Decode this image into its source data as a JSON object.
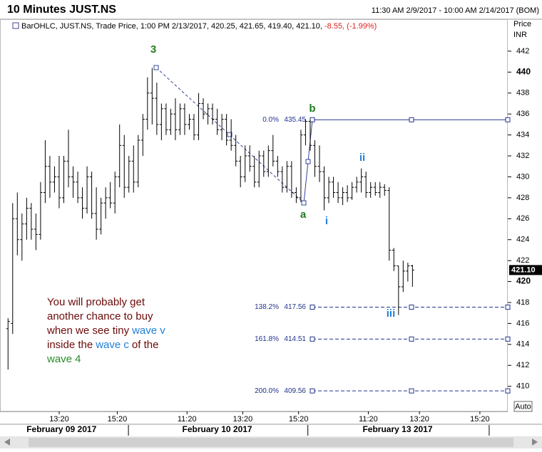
{
  "chart_data": {
    "type": "ohlc",
    "title": "10 Minutes JUST.NS",
    "range_label": "11:30 AM 2/9/2017 - 10:00 AM 2/14/2017 (BOM)",
    "info": "BarOHLC, JUST.NS, Trade Price, 1:00 PM 2/13/2017, 420.25, 421.65, 419.40, 421.10,",
    "info_change": "-8.55, (-1.99%)",
    "y_axis_label": "Price",
    "y_axis_unit": "INR",
    "auto_label": "Auto",
    "color": "#000000",
    "ohlc": {
      "open": [
        415.5,
        416,
        426,
        424,
        425.5,
        427,
        425,
        424.5,
        428.5,
        431,
        429.5,
        430,
        428,
        431.5,
        430,
        429.5,
        428,
        427,
        430,
        426.5,
        425,
        427.5,
        428,
        427.5,
        430,
        433,
        429,
        431.5,
        429.5,
        433.5,
        435.5,
        438,
        437.5,
        435,
        436.5,
        434.5,
        436,
        434.5,
        436.5,
        435,
        435.5,
        434,
        437,
        436,
        436.5,
        435.5,
        434.5,
        435.5,
        433.5,
        433,
        431.5,
        430,
        432,
        431,
        429.5,
        432,
        430.5,
        432.5,
        431.5,
        430.5,
        429,
        431,
        428.5,
        428,
        434,
        435.3,
        433,
        431,
        430.5,
        428,
        429.5,
        428.5,
        428,
        428.5,
        428,
        429,
        429.5,
        430,
        428.5,
        429,
        428.5,
        429,
        428.7,
        423,
        421.5,
        419.5,
        421,
        421.5
      ],
      "high": [
        416.5,
        427.5,
        428.5,
        426.5,
        428,
        427.5,
        426.5,
        429.5,
        433.5,
        432,
        431,
        432,
        432,
        434.5,
        431,
        430.5,
        429,
        431,
        430.5,
        429,
        428,
        429,
        429.5,
        430.5,
        435,
        434,
        432,
        433,
        434,
        436,
        439.5,
        440.4,
        439,
        437,
        437,
        436.5,
        437.5,
        437,
        437,
        436,
        436,
        438,
        437.5,
        437,
        437,
        436.5,
        436,
        436,
        435.5,
        434,
        432,
        433,
        433,
        432,
        432.5,
        432.5,
        433,
        434,
        432,
        431,
        431.5,
        431.5,
        429,
        434.5,
        435.5,
        435.45,
        433.5,
        433,
        431,
        430,
        430,
        429.5,
        429,
        429.2,
        429.5,
        430,
        430.8,
        430.5,
        429.5,
        429.5,
        429.5,
        429.3,
        429,
        423.2,
        421.5,
        422,
        421.8,
        421.6
      ],
      "low": [
        411.6,
        415,
        422.5,
        422,
        424,
        424,
        423,
        424,
        427.5,
        428,
        428.5,
        427,
        427.5,
        429,
        428,
        427.5,
        426,
        426.5,
        426,
        424,
        424.5,
        426,
        427,
        426.5,
        429,
        428,
        428.5,
        428.5,
        429,
        432,
        434.5,
        435,
        434,
        433.5,
        434,
        434,
        433.5,
        434,
        434,
        434.5,
        433.5,
        433.5,
        435.5,
        435,
        435,
        434,
        433.5,
        433,
        432.5,
        431,
        429,
        429.5,
        430.5,
        429,
        429,
        430,
        430,
        431,
        430,
        428.5,
        428.5,
        428,
        427.5,
        427.6,
        433,
        432.5,
        430,
        429.5,
        426.8,
        427.5,
        428,
        427.5,
        427.3,
        427.6,
        427.8,
        428.5,
        428.5,
        428,
        428,
        428.2,
        428,
        428.2,
        422,
        421,
        416.8,
        419,
        420,
        419.5
      ],
      "close": [
        416.2,
        426,
        424,
        425.5,
        427,
        425,
        424.5,
        428.5,
        431,
        429.5,
        430,
        428,
        431.5,
        430,
        429.5,
        428,
        427,
        430,
        426.5,
        425,
        427.5,
        428,
        427.5,
        430,
        433,
        429,
        431.5,
        429.5,
        433.5,
        435.5,
        438,
        437.5,
        435,
        436.5,
        434.5,
        436,
        434.5,
        436.5,
        435,
        435.5,
        434,
        437,
        436,
        436.5,
        435.5,
        434.5,
        435.5,
        433.5,
        433,
        431.5,
        430,
        432,
        431,
        429.5,
        432,
        430.5,
        432.5,
        431.5,
        430.5,
        429,
        431,
        428.5,
        428,
        434,
        435.3,
        433,
        431,
        430.5,
        428,
        429.5,
        428.5,
        428,
        428.5,
        428,
        429,
        429.5,
        430,
        428.5,
        429,
        428.5,
        429,
        428.7,
        423,
        421.5,
        419.5,
        421,
        421.5,
        421.1
      ]
    },
    "xlim": [
      -0.5,
      107.5
    ],
    "ylim": [
      407.6,
      445.05
    ],
    "yticks": [
      410,
      412,
      414,
      416,
      418,
      420,
      422,
      424,
      426,
      428,
      430,
      432,
      434,
      436,
      438,
      440,
      442
    ],
    "xticks": [
      {
        "value": 11,
        "label": "13:20"
      },
      {
        "value": 23.5,
        "label": "15:20"
      },
      {
        "value": 38.5,
        "label": "11:20"
      },
      {
        "value": 50.5,
        "label": "13:20"
      },
      {
        "value": 62.5,
        "label": "15:20"
      },
      {
        "value": 77.5,
        "label": "11:20"
      },
      {
        "value": 88.5,
        "label": "13:20"
      },
      {
        "value": 101.5,
        "label": "15:20"
      }
    ],
    "day_ticks": [
      {
        "value": 11.5,
        "label": "February 09 2017"
      },
      {
        "value": 45,
        "label": "February 10 2017"
      },
      {
        "value": 83.8,
        "label": "February 13 2017"
      }
    ],
    "day_separators": [
      25.9,
      64.5,
      103.5
    ],
    "last_price": {
      "value": 421.1,
      "label": "421.10"
    },
    "fib_levels": [
      {
        "ratio": "0.0%",
        "price": 435.45,
        "line_style": "solid"
      },
      {
        "ratio": "138.2%",
        "price": 417.56,
        "line_style": "dashed"
      },
      {
        "ratio": "161.8%",
        "price": 414.51,
        "line_style": "dashed"
      },
      {
        "ratio": "200.0%",
        "price": 409.56,
        "line_style": "dashed"
      }
    ],
    "wave_labels": [
      {
        "text": "3",
        "color": "#1e7b1e"
      },
      {
        "text": "b",
        "color": "#1e7b1e"
      },
      {
        "text": "a",
        "color": "#1e7b1e"
      },
      {
        "text": "i",
        "color": "#1f7fd6"
      },
      {
        "text": "ii",
        "color": "#1f7fd6"
      },
      {
        "text": "iii",
        "color": "#1f7fd6"
      }
    ],
    "note": [
      [
        {
          "text": "You will probably get",
          "color": "#6b0a0a"
        }
      ],
      [
        {
          "text": "another chance to buy",
          "color": "#6b0a0a"
        }
      ],
      [
        {
          "text": "when we see tiny",
          "color": "#6b0a0a"
        },
        {
          "text": "wave v",
          "color": "#1f7fd6"
        }
      ],
      [
        {
          "text": "inside the",
          "color": "#6b0a0a"
        },
        {
          "text": "wave c",
          "color": "#1f7fd6"
        },
        {
          "text": "of the",
          "color": "#6b0a0a"
        }
      ],
      [
        {
          "text": "wave 4",
          "color": "#2a8a2a"
        }
      ]
    ]
  }
}
